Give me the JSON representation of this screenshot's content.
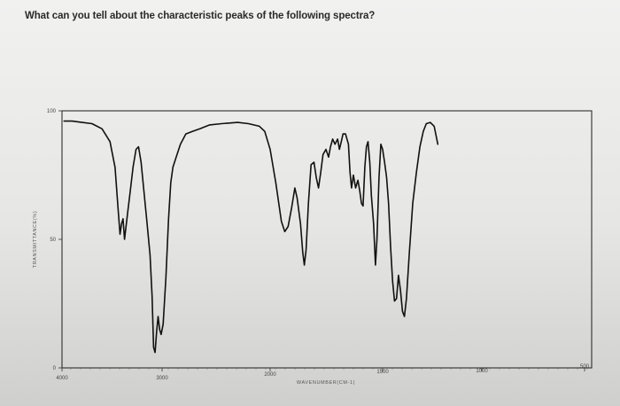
{
  "question": "What can you tell about the characteristic peaks of the following spectra?",
  "chart_data": {
    "type": "line",
    "title": "",
    "xlabel": "WAVENUMBER(CM-1)",
    "ylabel": "TRANSMITTANCE(%)",
    "xlim": [
      4000,
      500
    ],
    "ylim": [
      0,
      100
    ],
    "x_ticks": [
      {
        "value": 4000,
        "label": "4000"
      },
      {
        "value": 3000,
        "label": "3000"
      },
      {
        "value": 2000,
        "label": "2000"
      },
      {
        "value": 1500,
        "label": "1500"
      },
      {
        "value": 1000,
        "label": "1000"
      },
      {
        "value": 500,
        "label": "500"
      }
    ],
    "y_ticks": [
      {
        "value": 100,
        "label": "100"
      },
      {
        "value": 50,
        "label": "50"
      },
      {
        "value": 0,
        "label": "0"
      }
    ],
    "series": [
      {
        "name": "",
        "color": "#111111",
        "points": [
          [
            3980,
            96
          ],
          [
            3900,
            96
          ],
          [
            3800,
            95.5
          ],
          [
            3700,
            95
          ],
          [
            3600,
            93
          ],
          [
            3520,
            88
          ],
          [
            3470,
            78
          ],
          [
            3440,
            62
          ],
          [
            3420,
            52
          ],
          [
            3405,
            56
          ],
          [
            3390,
            58
          ],
          [
            3375,
            50
          ],
          [
            3360,
            55
          ],
          [
            3345,
            60
          ],
          [
            3320,
            68
          ],
          [
            3290,
            78
          ],
          [
            3260,
            85
          ],
          [
            3235,
            86
          ],
          [
            3210,
            80
          ],
          [
            3180,
            68
          ],
          [
            3150,
            56
          ],
          [
            3120,
            44
          ],
          [
            3100,
            28
          ],
          [
            3085,
            8
          ],
          [
            3070,
            6
          ],
          [
            3055,
            14
          ],
          [
            3040,
            20
          ],
          [
            3025,
            15
          ],
          [
            3010,
            13
          ],
          [
            2990,
            17
          ],
          [
            2965,
            35
          ],
          [
            2940,
            58
          ],
          [
            2920,
            72
          ],
          [
            2900,
            78
          ],
          [
            2870,
            82
          ],
          [
            2830,
            87
          ],
          [
            2780,
            91
          ],
          [
            2720,
            92
          ],
          [
            2650,
            93
          ],
          [
            2560,
            94.5
          ],
          [
            2450,
            95
          ],
          [
            2300,
            95.5
          ],
          [
            2200,
            95
          ],
          [
            2100,
            94
          ],
          [
            2050,
            92
          ],
          [
            2000,
            85
          ],
          [
            1975,
            72
          ],
          [
            1950,
            57
          ],
          [
            1935,
            53
          ],
          [
            1920,
            55
          ],
          [
            1905,
            62
          ],
          [
            1890,
            70
          ],
          [
            1880,
            66
          ],
          [
            1865,
            56
          ],
          [
            1855,
            45
          ],
          [
            1848,
            40
          ],
          [
            1840,
            46
          ],
          [
            1830,
            64
          ],
          [
            1818,
            79
          ],
          [
            1805,
            80
          ],
          [
            1795,
            74
          ],
          [
            1785,
            70
          ],
          [
            1775,
            76
          ],
          [
            1765,
            83
          ],
          [
            1752,
            85
          ],
          [
            1740,
            82
          ],
          [
            1732,
            86
          ],
          [
            1722,
            89
          ],
          [
            1712,
            87
          ],
          [
            1700,
            89
          ],
          [
            1692,
            85
          ],
          [
            1684,
            88
          ],
          [
            1676,
            91
          ],
          [
            1665,
            91
          ],
          [
            1652,
            87
          ],
          [
            1645,
            76
          ],
          [
            1638,
            70
          ],
          [
            1630,
            75
          ],
          [
            1620,
            70
          ],
          [
            1610,
            73
          ],
          [
            1602,
            69
          ],
          [
            1594,
            64
          ],
          [
            1587,
            63
          ],
          [
            1579,
            78
          ],
          [
            1572,
            86
          ],
          [
            1565,
            88
          ],
          [
            1557,
            80
          ],
          [
            1550,
            67
          ],
          [
            1540,
            56
          ],
          [
            1532,
            40
          ],
          [
            1525,
            50
          ],
          [
            1516,
            74
          ],
          [
            1508,
            87
          ],
          [
            1500,
            85
          ],
          [
            1490,
            80
          ],
          [
            1480,
            74
          ],
          [
            1470,
            64
          ],
          [
            1460,
            47
          ],
          [
            1450,
            34
          ],
          [
            1440,
            26
          ],
          [
            1430,
            27
          ],
          [
            1420,
            36
          ],
          [
            1410,
            30
          ],
          [
            1400,
            22
          ],
          [
            1390,
            20
          ],
          [
            1380,
            27
          ],
          [
            1365,
            45
          ],
          [
            1348,
            64
          ],
          [
            1330,
            76
          ],
          [
            1312,
            86
          ],
          [
            1295,
            92
          ],
          [
            1280,
            95
          ],
          [
            1260,
            95.5
          ],
          [
            1240,
            94
          ],
          [
            1222,
            87
          ]
        ]
      }
    ],
    "grid": false,
    "legend": "none"
  }
}
